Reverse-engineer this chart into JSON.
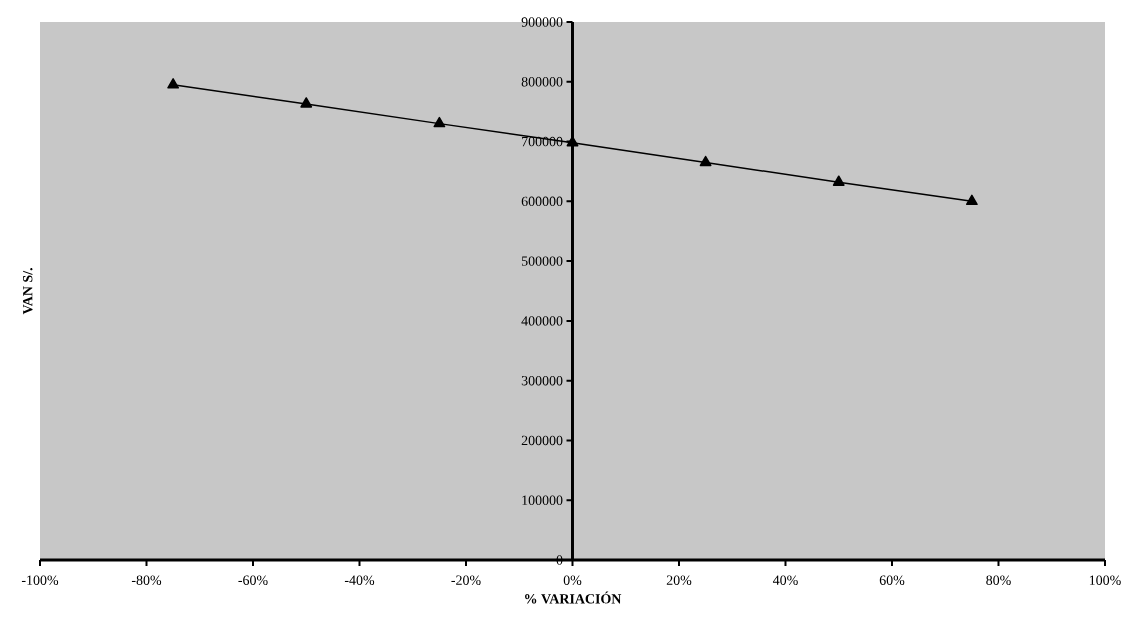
{
  "chart_data": {
    "type": "line",
    "xlabel": "% VARIACIÓN",
    "ylabel": "VAN S/.",
    "x": [
      -75,
      -50,
      -25,
      0,
      25,
      50,
      75
    ],
    "values": [
      795000,
      763000,
      730000,
      698000,
      665000,
      632000,
      600000
    ],
    "color": "#000000",
    "marker": "triangle",
    "line_style": "solid",
    "xlim": [
      -100,
      100
    ],
    "ylim": [
      0,
      900000
    ],
    "xticks": [
      {
        "value": -100,
        "label": "-100%"
      },
      {
        "value": -80,
        "label": "-80%"
      },
      {
        "value": -60,
        "label": "-60%"
      },
      {
        "value": -40,
        "label": "-40%"
      },
      {
        "value": -20,
        "label": "-20%"
      },
      {
        "value": 0,
        "label": "0%"
      },
      {
        "value": 20,
        "label": "20%"
      },
      {
        "value": 40,
        "label": "40%"
      },
      {
        "value": 60,
        "label": "60%"
      },
      {
        "value": 80,
        "label": "80%"
      },
      {
        "value": 100,
        "label": "100%"
      }
    ],
    "yticks": [
      0,
      100000,
      200000,
      300000,
      400000,
      500000,
      600000,
      700000,
      800000,
      900000
    ]
  }
}
